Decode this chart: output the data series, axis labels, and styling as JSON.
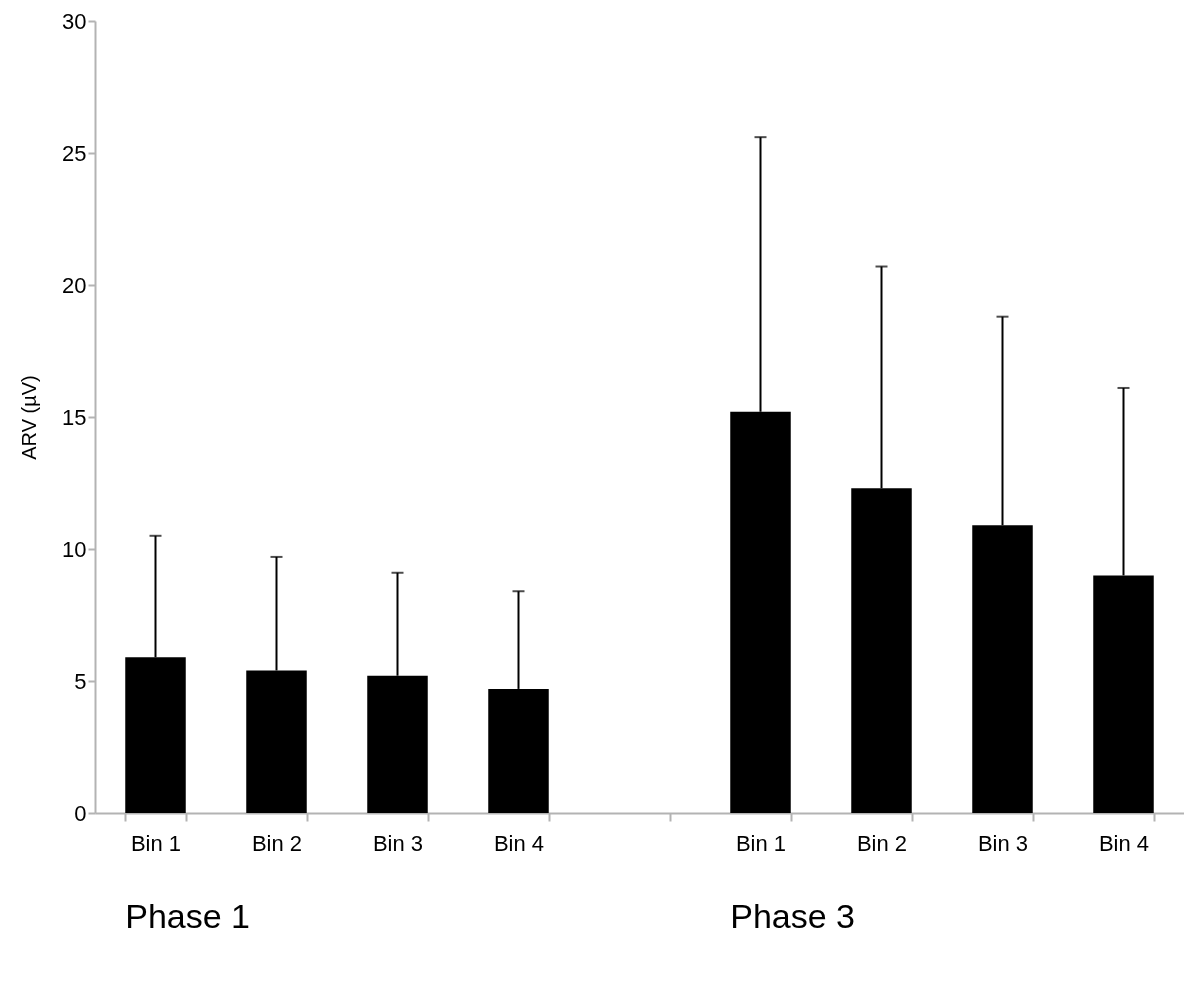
{
  "chart_data": {
    "type": "bar",
    "ylabel": "ARV (µV)",
    "categories": [
      "Bin 1",
      "Bin 2",
      "Bin 3",
      "Bin 4",
      null,
      "Bin 1",
      "Bin 2",
      "Bin 3",
      "Bin 4"
    ],
    "values": [
      5.9,
      5.4,
      5.2,
      4.7,
      null,
      15.2,
      12.3,
      10.9,
      9.0
    ],
    "errors": [
      [
        5.9,
        10.5
      ],
      [
        5.4,
        9.7
      ],
      [
        5.2,
        9.1
      ],
      [
        4.7,
        8.4
      ],
      null,
      [
        15.2,
        25.6
      ],
      [
        12.3,
        20.7
      ],
      [
        10.9,
        18.8
      ],
      [
        9.0,
        16.1
      ]
    ],
    "color": "#000000",
    "ylim": [
      0,
      30
    ],
    "yticks": [
      0,
      5,
      10,
      15,
      20,
      25,
      30
    ],
    "grid": false,
    "annotations": [
      "Phase 1",
      "Phase 3"
    ]
  }
}
